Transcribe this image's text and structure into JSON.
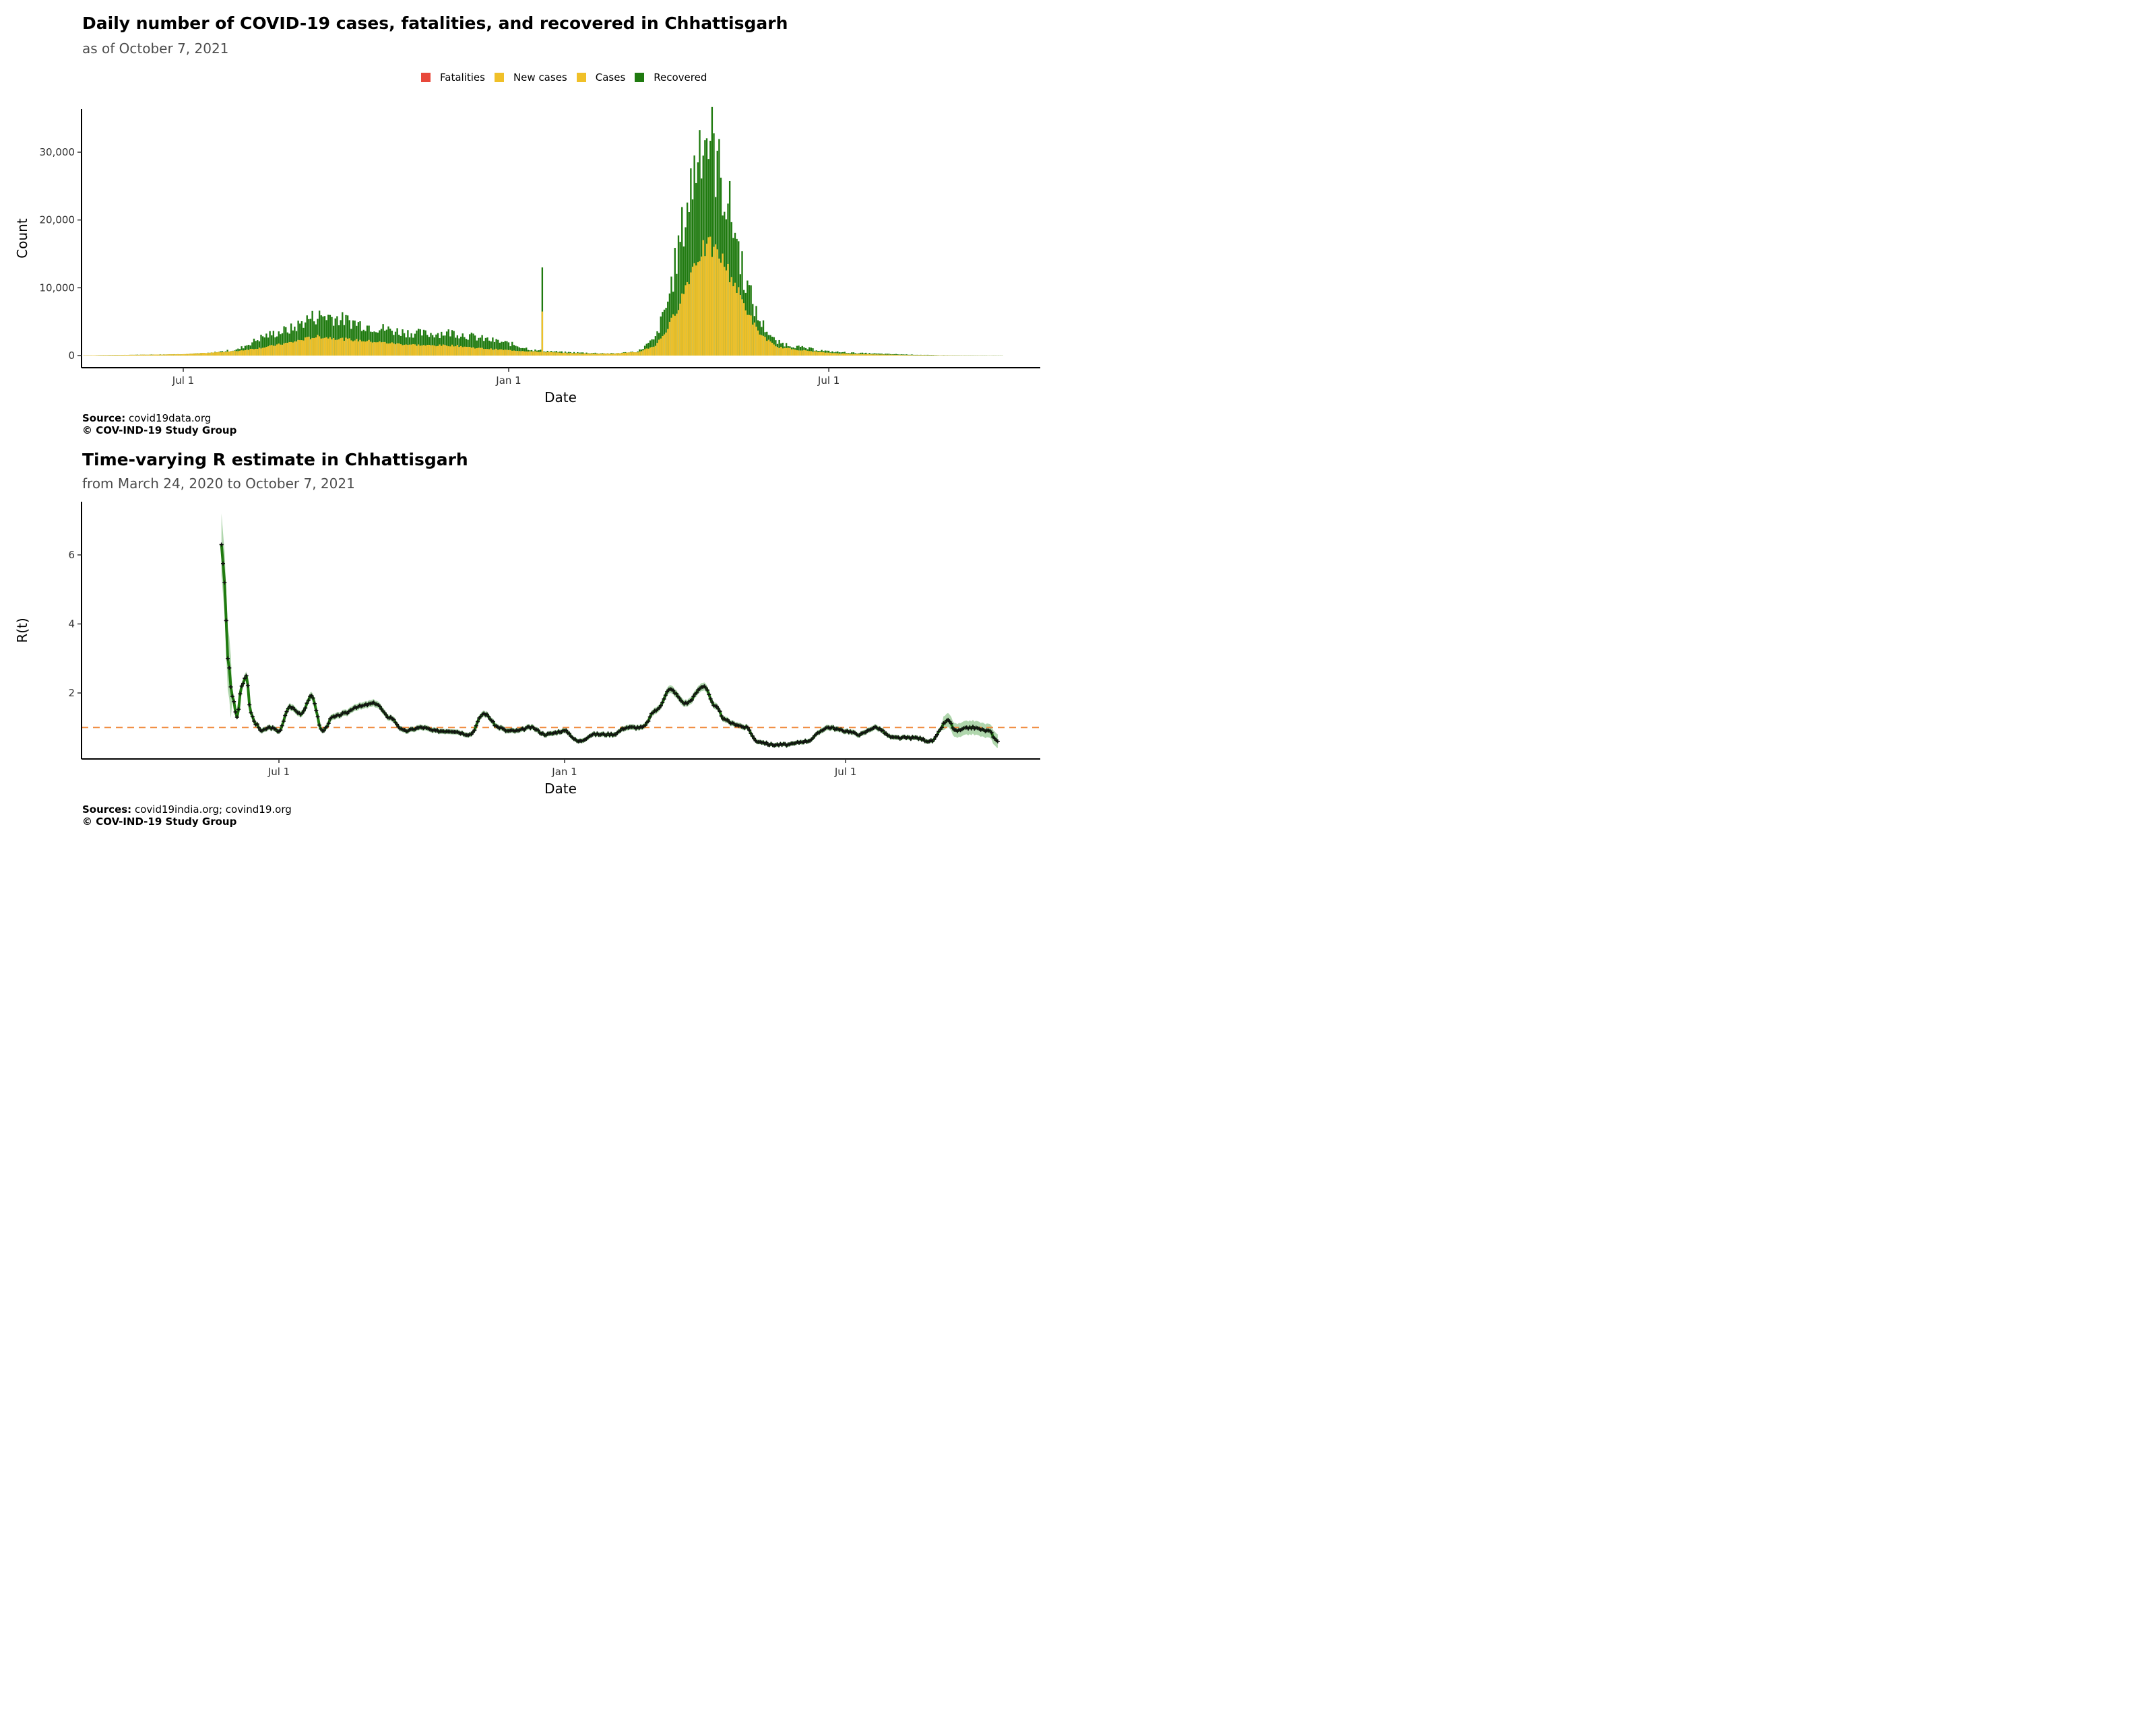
{
  "colors": {
    "fatalities": "#e8483b",
    "new_cases": "#f0c028",
    "cases": "#f0c028",
    "recovered": "#1f7a0f",
    "line": "#1f7a0f",
    "ribbon": "#8fc58a",
    "threshold": "#f08a3c"
  },
  "chart1": {
    "title": "Daily number of COVID-19 cases, fatalities, and recovered in Chhattisgarh",
    "subtitle": "as of October  7, 2021",
    "legend": [
      {
        "label": "Fatalities",
        "color": "#e8483b"
      },
      {
        "label": "New cases",
        "color": "#f0c028"
      },
      {
        "label": "Cases",
        "color": "#f0c028"
      },
      {
        "label": "Recovered",
        "color": "#1f7a0f"
      }
    ],
    "ylabel": "Count",
    "xlabel": "Date",
    "caption_source_label": "Source:",
    "caption_source": "covid19data.org",
    "caption_copyright": "© COV-IND-19 Study Group"
  },
  "chart2": {
    "title": "Time-varying R estimate in Chhattisgarh",
    "subtitle": "from March 24, 2020 to October  7, 2021",
    "ylabel": "R(t)",
    "xlabel": "Date",
    "caption_source_label": "Sources:",
    "caption_source": "covid19india.org; covind19.org",
    "caption_copyright": "© COV-IND-19 Study Group"
  },
  "chart_data": [
    {
      "type": "bar",
      "title": "Daily number of COVID-19 cases, fatalities, and recovered in Chhattisgarh",
      "subtitle": "as of October  7, 2021",
      "xlabel": "Date",
      "ylabel": "Count",
      "x_ticks": [
        "Jul 1",
        "Jan 1",
        "Jul 1"
      ],
      "y_ticks": [
        "0",
        "10,000",
        "20,000",
        "30,000"
      ],
      "ylim": [
        0,
        36000
      ],
      "xlim": [
        "2020-03-24",
        "2021-10-07"
      ],
      "legend_position": "top",
      "grid": false,
      "series_names": [
        "Fatalities",
        "New cases",
        "Cases",
        "Recovered"
      ],
      "x": [
        "2020-05-01",
        "2020-06-01",
        "2020-07-01",
        "2020-07-15",
        "2020-08-01",
        "2020-08-15",
        "2020-09-01",
        "2020-09-10",
        "2020-09-15",
        "2020-09-20",
        "2020-10-01",
        "2020-10-15",
        "2020-11-01",
        "2020-11-15",
        "2020-12-01",
        "2020-12-15",
        "2021-01-01",
        "2021-01-15",
        "2021-01-20",
        "2021-02-01",
        "2021-02-15",
        "2021-03-01",
        "2021-03-15",
        "2021-03-25",
        "2021-04-01",
        "2021-04-08",
        "2021-04-15",
        "2021-04-20",
        "2021-04-25",
        "2021-05-01",
        "2021-05-08",
        "2021-05-15",
        "2021-05-22",
        "2021-06-01",
        "2021-06-15",
        "2021-07-01",
        "2021-07-15",
        "2021-08-01",
        "2021-08-15",
        "2021-09-01",
        "2021-09-15",
        "2021-10-07"
      ],
      "series": [
        {
          "name": "Cases",
          "values": [
            30,
            100,
            200,
            400,
            700,
            1200,
            2000,
            2600,
            2800,
            2700,
            2400,
            2100,
            1700,
            1500,
            1500,
            1100,
            800,
            600,
            6500,
            400,
            300,
            300,
            500,
            1500,
            4000,
            8000,
            13000,
            15500,
            16000,
            14500,
            11000,
            7000,
            3500,
            1300,
            800,
            400,
            250,
            150,
            80,
            40,
            20,
            10
          ]
        },
        {
          "name": "Recovered",
          "values": [
            20,
            100,
            200,
            350,
            900,
            2800,
            4000,
            5500,
            5800,
            5900,
            5200,
            4300,
            3500,
            3200,
            3400,
            2600,
            1800,
            800,
            13000,
            500,
            400,
            300,
            600,
            2500,
            8000,
            17000,
            26000,
            33000,
            32000,
            26000,
            19500,
            11000,
            5500,
            2000,
            1200,
            600,
            400,
            250,
            150,
            60,
            30,
            20
          ]
        }
      ]
    },
    {
      "type": "line",
      "title": "Time-varying R estimate in Chhattisgarh",
      "subtitle": "from March 24, 2020 to October  7, 2021",
      "xlabel": "Date",
      "ylabel": "R(t)",
      "x_ticks": [
        "Jul 1",
        "Jan 1",
        "Jul 1"
      ],
      "y_ticks": [
        "2",
        "4",
        "6"
      ],
      "ylim": [
        0.1,
        7.5
      ],
      "xlim": [
        "2020-03-24",
        "2021-10-07"
      ],
      "threshold": 1,
      "grid": false,
      "x": [
        "2020-05-25",
        "2020-05-27",
        "2020-05-29",
        "2020-06-01",
        "2020-06-04",
        "2020-06-07",
        "2020-06-10",
        "2020-06-13",
        "2020-06-16",
        "2020-06-20",
        "2020-06-25",
        "2020-07-01",
        "2020-07-08",
        "2020-07-15",
        "2020-07-22",
        "2020-07-29",
        "2020-08-05",
        "2020-08-12",
        "2020-08-20",
        "2020-09-01",
        "2020-09-10",
        "2020-09-20",
        "2020-10-01",
        "2020-10-10",
        "2020-10-20",
        "2020-11-01",
        "2020-11-10",
        "2020-11-20",
        "2020-11-25",
        "2020-12-01",
        "2020-12-10",
        "2020-12-20",
        "2021-01-01",
        "2021-01-10",
        "2021-01-20",
        "2021-02-01",
        "2021-02-10",
        "2021-02-20",
        "2021-03-01",
        "2021-03-10",
        "2021-03-20",
        "2021-04-01",
        "2021-04-08",
        "2021-04-15",
        "2021-04-20",
        "2021-04-28",
        "2021-05-05",
        "2021-05-15",
        "2021-05-25",
        "2021-06-05",
        "2021-06-20",
        "2021-07-01",
        "2021-07-10",
        "2021-07-20",
        "2021-08-01",
        "2021-08-15",
        "2021-08-25",
        "2021-09-05",
        "2021-09-10",
        "2021-09-20",
        "2021-10-01",
        "2021-10-07"
      ],
      "series": [
        {
          "name": "",
          "values": [
            6.3,
            5.2,
            3.0,
            1.9,
            1.3,
            2.2,
            2.5,
            1.4,
            1.1,
            0.9,
            1.0,
            0.9,
            1.6,
            1.4,
            1.9,
            0.9,
            1.3,
            1.4,
            1.6,
            1.7,
            1.3,
            0.9,
            1.0,
            0.9,
            0.9,
            0.8,
            1.4,
            1.0,
            0.9,
            0.9,
            1.0,
            0.8,
            0.9,
            0.6,
            0.8,
            0.8,
            1.0,
            1.0,
            1.5,
            2.1,
            1.7,
            2.2,
            1.6,
            1.2,
            1.1,
            1.0,
            0.6,
            0.5,
            0.5,
            0.6,
            1.0,
            0.9,
            0.8,
            1.0,
            0.7,
            0.7,
            0.6,
            1.2,
            0.9,
            1.0,
            0.9,
            0.6
          ]
        }
      ]
    }
  ]
}
